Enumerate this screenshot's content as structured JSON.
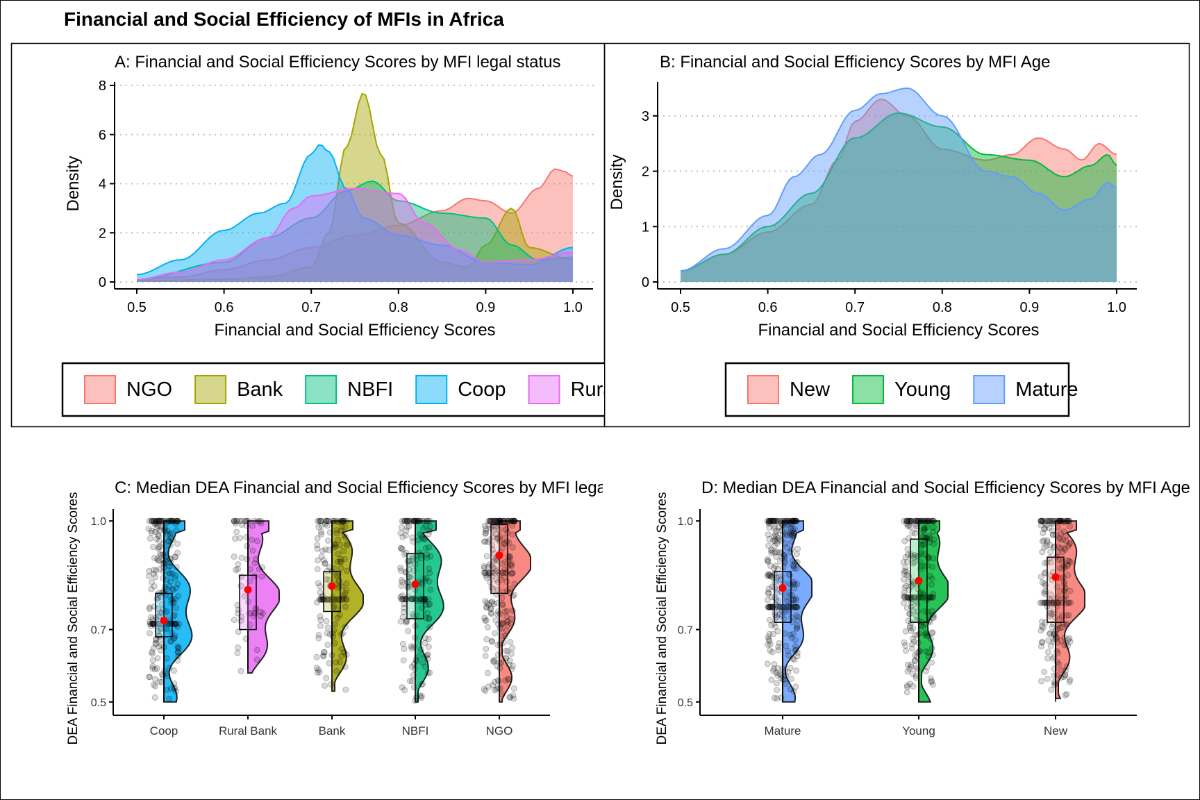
{
  "figure": {
    "title": "Financial and Social Efficiency of MFIs in Africa"
  },
  "chart_data": [
    {
      "panel": "A",
      "type": "area",
      "subtype": "density",
      "title": "A: Financial and Social Efficiency Scores by MFI legal status",
      "xlabel": "Financial and Social Efficiency Scores",
      "ylabel": "Density",
      "xlim": [
        0.5,
        1.0
      ],
      "ylim": [
        0,
        8
      ],
      "x_ticks": [
        "0.5",
        "0.6",
        "0.7",
        "0.8",
        "0.9",
        "1.0"
      ],
      "y_ticks": [
        "0",
        "2",
        "4",
        "6",
        "8"
      ],
      "grid": "horizontal dotted",
      "legend_position": "bottom",
      "legend": [
        "NGO",
        "Bank",
        "NBFI",
        "Coop",
        "Rural Bank"
      ],
      "series": [
        {
          "name": "NGO",
          "color": "#F8766D",
          "x": [
            0.5,
            0.55,
            0.6,
            0.65,
            0.7,
            0.75,
            0.8,
            0.85,
            0.88,
            0.9,
            0.93,
            0.96,
            0.98,
            0.99,
            1.0
          ],
          "y": [
            0.1,
            0.2,
            0.5,
            0.9,
            1.4,
            1.9,
            2.3,
            2.9,
            3.4,
            3.3,
            2.8,
            3.8,
            4.6,
            4.5,
            4.3
          ]
        },
        {
          "name": "Bank",
          "color": "#A3A500",
          "x": [
            0.5,
            0.6,
            0.65,
            0.7,
            0.72,
            0.74,
            0.76,
            0.78,
            0.8,
            0.85,
            0.88,
            0.9,
            0.93,
            0.95,
            1.0
          ],
          "y": [
            0.05,
            0.1,
            0.2,
            0.6,
            2.0,
            5.5,
            7.7,
            5.2,
            2.4,
            0.8,
            0.6,
            1.5,
            3.0,
            1.4,
            0.9
          ]
        },
        {
          "name": "NBFI",
          "color": "#00BF7D",
          "x": [
            0.5,
            0.6,
            0.65,
            0.7,
            0.74,
            0.77,
            0.8,
            0.85,
            0.9,
            0.93,
            0.96,
            1.0
          ],
          "y": [
            0.1,
            0.8,
            1.8,
            2.6,
            3.7,
            4.1,
            3.3,
            2.8,
            2.6,
            1.5,
            0.9,
            1.0
          ]
        },
        {
          "name": "Coop",
          "color": "#00B0F6",
          "x": [
            0.5,
            0.55,
            0.6,
            0.64,
            0.67,
            0.7,
            0.71,
            0.72,
            0.74,
            0.76,
            0.8,
            0.85,
            0.9,
            0.95,
            1.0
          ],
          "y": [
            0.3,
            0.9,
            2.1,
            2.8,
            3.2,
            5.2,
            5.6,
            5.3,
            3.8,
            2.6,
            1.9,
            1.5,
            0.8,
            0.7,
            1.4
          ]
        },
        {
          "name": "Rural Bank",
          "color": "#E76BF3",
          "x": [
            0.5,
            0.55,
            0.6,
            0.65,
            0.68,
            0.7,
            0.75,
            0.8,
            0.83,
            0.87,
            0.9,
            0.95,
            1.0
          ],
          "y": [
            0.1,
            0.4,
            0.9,
            1.8,
            3.0,
            3.5,
            3.8,
            3.6,
            2.4,
            1.3,
            0.8,
            0.9,
            1.2
          ]
        }
      ]
    },
    {
      "panel": "B",
      "type": "area",
      "subtype": "density",
      "title": "B: Financial and Social Efficiency Scores by MFI Age",
      "xlabel": "Financial and Social Efficiency Scores",
      "ylabel": "Density",
      "xlim": [
        0.5,
        1.0
      ],
      "ylim": [
        0,
        3.6
      ],
      "x_ticks": [
        "0.5",
        "0.6",
        "0.7",
        "0.8",
        "0.9",
        "1.0"
      ],
      "y_ticks": [
        "0",
        "1",
        "2",
        "3"
      ],
      "grid": "horizontal dotted",
      "legend_position": "bottom",
      "legend": [
        "New",
        "Young",
        "Mature"
      ],
      "series": [
        {
          "name": "New",
          "color": "#F8766D",
          "x": [
            0.5,
            0.55,
            0.6,
            0.65,
            0.68,
            0.7,
            0.73,
            0.76,
            0.8,
            0.85,
            0.88,
            0.91,
            0.94,
            0.96,
            0.98,
            1.0
          ],
          "y": [
            0.2,
            0.5,
            0.9,
            1.4,
            2.2,
            2.9,
            3.3,
            3.0,
            2.4,
            2.2,
            2.3,
            2.6,
            2.4,
            2.2,
            2.5,
            2.3
          ]
        },
        {
          "name": "Young",
          "color": "#00BA38",
          "x": [
            0.5,
            0.55,
            0.6,
            0.65,
            0.7,
            0.75,
            0.8,
            0.85,
            0.9,
            0.94,
            0.97,
            0.99,
            1.0
          ],
          "y": [
            0.2,
            0.5,
            1.0,
            1.6,
            2.6,
            3.05,
            2.8,
            2.3,
            2.2,
            1.9,
            2.1,
            2.3,
            2.1
          ]
        },
        {
          "name": "Mature",
          "color": "#619CFF",
          "x": [
            0.5,
            0.55,
            0.6,
            0.63,
            0.66,
            0.7,
            0.73,
            0.76,
            0.8,
            0.85,
            0.88,
            0.91,
            0.94,
            0.97,
            0.99,
            1.0
          ],
          "y": [
            0.2,
            0.6,
            1.2,
            1.9,
            2.3,
            3.1,
            3.4,
            3.5,
            3.0,
            2.0,
            1.9,
            1.6,
            1.3,
            1.5,
            1.8,
            1.7
          ]
        }
      ]
    },
    {
      "panel": "C",
      "type": "scatter",
      "subtype": "raincloud (half-violin, boxplot, jittered points, median)",
      "title": "C: Median DEA Financial and Social Efficiency Scores by MFI legal status",
      "ylabel": "DEA Financial and Social Efficiency Scores",
      "ylim": [
        0.49,
        1.01
      ],
      "y_ticks": [
        "0.5",
        "0.7",
        "1.0"
      ],
      "categories": [
        "Coop",
        "Rural Bank",
        "Bank",
        "NBFI",
        "NGO"
      ],
      "colors": [
        "#00B0F6",
        "#E76BF3",
        "#A3A500",
        "#00BF7D",
        "#F8766D"
      ],
      "medians": [
        0.725,
        0.81,
        0.82,
        0.825,
        0.905
      ],
      "box": [
        {
          "q1": 0.68,
          "q3": 0.8,
          "whisker_low": 0.5,
          "whisker_high": 1.0
        },
        {
          "q1": 0.7,
          "q3": 0.85,
          "whisker_low": 0.59,
          "whisker_high": 0.99
        },
        {
          "q1": 0.75,
          "q3": 0.86,
          "whisker_low": 0.66,
          "whisker_high": 1.0
        },
        {
          "q1": 0.73,
          "q3": 0.91,
          "whisker_low": 0.56,
          "whisker_high": 1.0
        },
        {
          "q1": 0.8,
          "q3": 0.99,
          "whisker_low": 0.61,
          "whisker_high": 1.0
        }
      ],
      "point_ranges": [
        [
          0.5,
          1.0
        ],
        [
          0.58,
          1.0
        ],
        [
          0.53,
          1.0
        ],
        [
          0.5,
          1.0
        ],
        [
          0.5,
          1.0
        ]
      ]
    },
    {
      "panel": "D",
      "type": "scatter",
      "subtype": "raincloud (half-violin, boxplot, jittered points, median)",
      "title": "D: Median DEA Financial and Social Efficiency Scores by MFI Age",
      "ylabel": "DEA Financial and Social Efficiency Scores",
      "ylim": [
        0.49,
        1.01
      ],
      "y_ticks": [
        "0.5",
        "0.7",
        "1.0"
      ],
      "categories": [
        "Mature",
        "Young",
        "New"
      ],
      "colors": [
        "#619CFF",
        "#00BA38",
        "#F8766D"
      ],
      "medians": [
        0.815,
        0.835,
        0.845
      ],
      "box": [
        {
          "q1": 0.72,
          "q3": 0.86,
          "whisker_low": 0.5,
          "whisker_high": 1.0
        },
        {
          "q1": 0.72,
          "q3": 0.95,
          "whisker_low": 0.5,
          "whisker_high": 1.0
        },
        {
          "q1": 0.72,
          "q3": 0.9,
          "whisker_low": 0.5,
          "whisker_high": 1.0
        }
      ],
      "point_ranges": [
        [
          0.5,
          1.0
        ],
        [
          0.5,
          1.0
        ],
        [
          0.51,
          1.0
        ]
      ]
    }
  ]
}
